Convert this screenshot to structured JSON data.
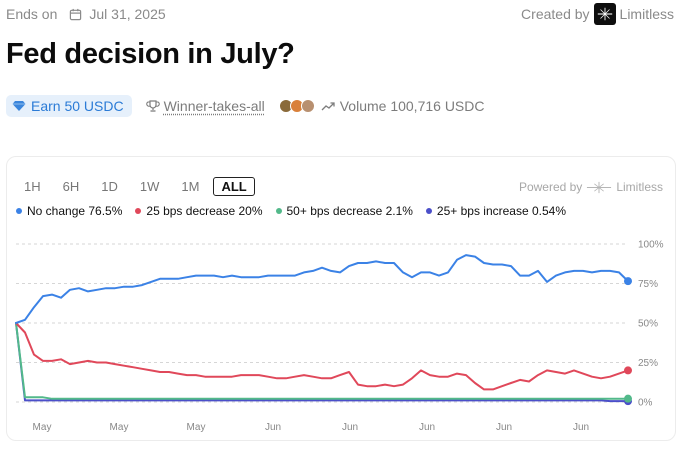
{
  "header": {
    "ends_label": "Ends on",
    "end_date": "Jul 31, 2025",
    "created_by_label": "Created by",
    "creator": "Limitless"
  },
  "title": "Fed decision in July?",
  "meta": {
    "earn_label": "Earn 50 USDC",
    "winner_label": "Winner-takes-all",
    "volume_label": "Volume 100,716 USDC"
  },
  "chart_controls": {
    "timeframes": [
      "1H",
      "6H",
      "1D",
      "1W",
      "1M",
      "ALL"
    ],
    "active": "ALL",
    "powered_by_label": "Powered by",
    "powered_by_brand": "Limitless"
  },
  "legend": [
    {
      "label": "No change 76.5%",
      "color": "#3b82e6"
    },
    {
      "label": "25 bps decrease 20%",
      "color": "#e0485a"
    },
    {
      "label": "50+ bps decrease 2.1%",
      "color": "#52b98a"
    },
    {
      "label": "25+ bps increase 0.54%",
      "color": "#4b4fc9"
    }
  ],
  "colors": {
    "no_change": "#3b82e6",
    "bps25_decrease": "#e0485a",
    "bps50_decrease": "#52b98a",
    "bps25_increase": "#4b4fc9"
  },
  "chart_data": {
    "type": "line",
    "ylim": [
      0,
      100
    ],
    "y_ticks": [
      "100%",
      "75%",
      "50%",
      "25%",
      "0%"
    ],
    "y_tick_values": [
      100,
      75,
      50,
      25,
      0
    ],
    "x_ticks": [
      "May",
      "May",
      "May",
      "Jun",
      "Jun",
      "Jun",
      "Jun",
      "Jun"
    ],
    "grid": true,
    "series": [
      {
        "name": "No change",
        "color": "#3b82e6",
        "values": [
          50,
          52,
          60,
          67,
          68,
          66,
          71,
          72,
          70,
          71,
          72,
          72,
          73,
          73,
          74,
          76,
          78,
          78,
          78,
          79,
          80,
          80,
          80,
          79,
          80,
          79,
          79,
          79,
          80,
          80,
          80,
          80,
          82,
          83,
          85,
          83,
          82,
          86,
          88,
          88,
          89,
          88,
          88,
          82,
          79,
          82,
          82,
          80,
          82,
          90,
          93,
          92,
          88,
          87,
          87,
          86,
          80,
          80,
          83,
          76,
          80,
          82,
          83,
          83,
          82,
          83,
          83,
          82,
          76.5
        ]
      },
      {
        "name": "25 bps decrease",
        "color": "#e0485a",
        "values": [
          50,
          44,
          30,
          26,
          26,
          27,
          24,
          25,
          26,
          25,
          25,
          24,
          23,
          22,
          21,
          20,
          19,
          19,
          18,
          17,
          17,
          16,
          16,
          16,
          16,
          17,
          17,
          17,
          16,
          15,
          15,
          16,
          17,
          16,
          15,
          15,
          17,
          19,
          11,
          10,
          10,
          11,
          10,
          11,
          15,
          20,
          17,
          16,
          16,
          18,
          17,
          12,
          8,
          8,
          10,
          12,
          14,
          13,
          17,
          20,
          19,
          18,
          20,
          18,
          16,
          15,
          16,
          18,
          20
        ]
      },
      {
        "name": "50+ bps decrease",
        "color": "#52b98a",
        "values": [
          50,
          3,
          3,
          3,
          2,
          2,
          2,
          2,
          2,
          2,
          2,
          2,
          2,
          2,
          2,
          2,
          2,
          2,
          2,
          2,
          2,
          2,
          2,
          2,
          2,
          2,
          2,
          2,
          2,
          2,
          2,
          2,
          2,
          2,
          2,
          2,
          2,
          2,
          2,
          2,
          2,
          2,
          2,
          2,
          2,
          2,
          2,
          2,
          2,
          2,
          2,
          2,
          2,
          2,
          2,
          2,
          2,
          2,
          2,
          2,
          2,
          2,
          2,
          2,
          2,
          2,
          2.1,
          2.1,
          2.1
        ]
      },
      {
        "name": "25+ bps increase",
        "color": "#4b4fc9",
        "values": [
          50,
          1,
          1,
          1,
          1,
          1,
          1,
          1,
          1,
          1,
          1,
          1,
          1,
          1,
          1,
          1,
          1,
          1,
          1,
          1,
          1,
          1,
          1,
          1,
          1,
          1,
          1,
          1,
          1,
          1,
          1,
          1,
          1,
          1,
          1,
          1,
          1,
          1,
          1,
          1,
          1,
          1,
          1,
          1,
          1,
          1,
          1,
          1,
          1,
          1,
          1,
          1,
          1,
          1,
          1,
          1,
          1,
          1,
          1,
          1,
          1,
          1,
          1,
          1,
          1,
          1,
          0.6,
          0.54,
          0.54
        ]
      }
    ]
  }
}
